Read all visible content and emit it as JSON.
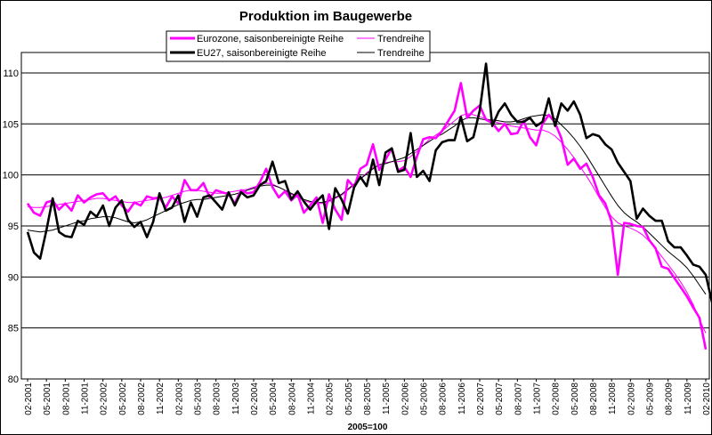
{
  "chart_data": {
    "type": "line",
    "title": "Produktion im Baugewerbe",
    "xlabel": "2005=100",
    "ylabel": "",
    "ylim": [
      80,
      112
    ],
    "yticks": [
      80,
      85,
      90,
      95,
      100,
      105,
      110
    ],
    "grid": "horizontal",
    "legend_position": "top-center",
    "x_start": "2001-02",
    "x_end": "2010-02",
    "x_tick_labels": [
      "02-2001",
      "05-2001",
      "08-2001",
      "11-2001",
      "02-2002",
      "05-2002",
      "08-2002",
      "11-2002",
      "02-2003",
      "05-2003",
      "08-2003",
      "11-2003",
      "02-2004",
      "05-2004",
      "08-2004",
      "11-2004",
      "02-2005",
      "05-2005",
      "08-2005",
      "11-2005",
      "02-2006",
      "05-2006",
      "08-2006",
      "11-2006",
      "02-2007",
      "05-2007",
      "08-2007",
      "11-2007",
      "02-2008",
      "05-2008",
      "08-2008",
      "11-2008",
      "02-2009",
      "05-2009",
      "08-2009",
      "11-2009",
      "02-2010"
    ],
    "series": [
      {
        "name": "Eurozone, saisonbereinigte Reihe",
        "color": "#ff00ff",
        "style": "thick",
        "values": [
          97.2,
          96.3,
          96.0,
          97.3,
          97.5,
          96.6,
          97.2,
          96.5,
          98.0,
          97.3,
          97.8,
          98.1,
          98.2,
          97.5,
          97.9,
          97.0,
          96.4,
          97.3,
          97.0,
          97.9,
          97.7,
          97.8,
          96.8,
          97.9,
          97.2,
          99.5,
          98.5,
          98.5,
          99.2,
          97.8,
          98.5,
          98.3,
          98.1,
          97.2,
          98.5,
          98.2,
          98.3,
          99.3,
          100.6,
          98.8,
          97.8,
          98.4,
          97.5,
          98.1,
          96.3,
          97.0,
          97.8,
          95.3,
          98.1,
          96.6,
          95.6,
          99.5,
          98.8,
          100.6,
          101.0,
          103.0,
          100.5,
          101.5,
          102.6,
          100.4,
          100.8,
          99.8,
          101.8,
          103.5,
          103.7,
          103.6,
          104.3,
          105.3,
          106.3,
          109.0,
          105.6,
          106.3,
          106.8,
          105.4,
          105.1,
          104.3,
          105.0,
          104.0,
          104.1,
          105.3,
          103.7,
          102.9,
          105.0,
          105.9,
          105.1,
          103.6,
          101.0,
          101.6,
          100.6,
          101.1,
          99.8,
          98.0,
          97.2,
          95.4,
          90.2,
          95.3,
          95.2,
          95.0,
          94.9,
          93.6,
          92.8,
          91.0,
          90.8,
          89.9,
          89.0,
          88.1,
          87.0,
          86.0,
          82.9
        ]
      },
      {
        "name": "Trendreihe",
        "color": "#ff00ff",
        "style": "thin",
        "values": [
          96.9,
          96.8,
          96.8,
          96.9,
          97.0,
          97.1,
          97.2,
          97.3,
          97.4,
          97.5,
          97.6,
          97.7,
          97.7,
          97.6,
          97.5,
          97.4,
          97.3,
          97.3,
          97.4,
          97.5,
          97.6,
          97.7,
          97.8,
          98.0,
          98.2,
          98.4,
          98.5,
          98.5,
          98.4,
          98.3,
          98.2,
          98.2,
          98.3,
          98.4,
          98.5,
          98.6,
          98.8,
          99.0,
          99.2,
          99.1,
          98.8,
          98.5,
          98.1,
          97.8,
          97.5,
          97.3,
          97.2,
          97.2,
          97.4,
          97.7,
          98.0,
          98.5,
          99.0,
          99.6,
          100.2,
          100.7,
          101.0,
          101.2,
          101.3,
          101.3,
          101.4,
          101.8,
          102.3,
          102.9,
          103.5,
          103.9,
          104.3,
          104.8,
          105.3,
          105.8,
          106.0,
          105.9,
          105.7,
          105.5,
          105.3,
          105.1,
          105.0,
          104.8,
          104.7,
          104.6,
          104.5,
          104.4,
          104.4,
          104.2,
          103.8,
          103.2,
          102.5,
          101.7,
          100.8,
          99.9,
          98.9,
          97.8,
          96.8,
          95.9,
          95.3,
          95.0,
          94.8,
          94.5,
          94.1,
          93.5,
          92.8,
          92.0,
          91.2,
          90.4,
          89.5,
          88.5,
          87.3,
          85.8,
          84.5
        ]
      },
      {
        "name": "EU27, saisonbereinigte Reihe",
        "color": "#000000",
        "style": "thick",
        "values": [
          94.4,
          92.4,
          91.8,
          94.6,
          97.7,
          94.4,
          94.0,
          93.9,
          95.5,
          95.1,
          96.4,
          95.9,
          97.0,
          95.0,
          96.8,
          97.5,
          95.6,
          94.9,
          95.4,
          93.9,
          95.4,
          98.2,
          96.5,
          96.8,
          98.0,
          95.4,
          97.3,
          95.9,
          97.8,
          98.0,
          97.3,
          96.6,
          98.3,
          97.0,
          98.3,
          97.8,
          98.0,
          99.0,
          99.4,
          101.3,
          99.2,
          99.4,
          97.6,
          98.4,
          97.4,
          96.6,
          97.4,
          98.0,
          94.7,
          98.7,
          97.6,
          96.2,
          98.8,
          99.8,
          98.9,
          101.5,
          99.0,
          102.2,
          102.6,
          100.3,
          100.5,
          104.1,
          99.8,
          100.4,
          99.4,
          102.4,
          103.2,
          103.4,
          103.4,
          105.7,
          103.3,
          103.7,
          106.3,
          110.9,
          104.8,
          106.2,
          107.0,
          105.9,
          105.2,
          105.2,
          105.6,
          104.8,
          105.2,
          107.5,
          104.8,
          107.0,
          106.3,
          107.2,
          105.9,
          103.6,
          104.0,
          103.8,
          103.0,
          102.5,
          101.2,
          100.3,
          99.4,
          95.7,
          96.7,
          96.0,
          95.5,
          95.5,
          93.5,
          92.9,
          92.9,
          92.1,
          91.2,
          91.0,
          90.2,
          87.5
        ]
      },
      {
        "name": "Trendreihe",
        "color": "#000000",
        "style": "thin",
        "values": [
          94.6,
          94.5,
          94.4,
          94.5,
          94.6,
          94.8,
          95.0,
          95.2,
          95.4,
          95.5,
          95.7,
          95.8,
          95.9,
          95.9,
          95.8,
          95.6,
          95.4,
          95.3,
          95.4,
          95.6,
          95.9,
          96.2,
          96.5,
          96.8,
          97.1,
          97.3,
          97.5,
          97.6,
          97.6,
          97.7,
          97.8,
          97.9,
          98.0,
          98.1,
          98.3,
          98.5,
          98.7,
          98.9,
          99.0,
          99.0,
          98.8,
          98.5,
          98.2,
          97.9,
          97.6,
          97.4,
          97.3,
          97.3,
          97.5,
          97.8,
          98.1,
          98.6,
          99.1,
          99.6,
          100.1,
          100.6,
          101.0,
          101.1,
          101.3,
          101.5,
          101.7,
          102.1,
          102.5,
          102.9,
          103.3,
          103.7,
          104.0,
          104.4,
          104.8,
          105.3,
          105.6,
          105.6,
          105.5,
          105.4,
          105.4,
          105.3,
          105.2,
          105.2,
          105.3,
          105.5,
          105.7,
          105.8,
          105.9,
          105.8,
          105.5,
          104.9,
          104.3,
          103.6,
          102.8,
          101.9,
          100.9,
          99.9,
          98.9,
          97.9,
          97.0,
          96.3,
          95.8,
          95.4,
          94.9,
          94.3,
          93.7,
          93.1,
          92.5,
          92.0,
          91.5,
          90.9,
          90.1,
          89.2,
          88.3
        ]
      }
    ]
  }
}
